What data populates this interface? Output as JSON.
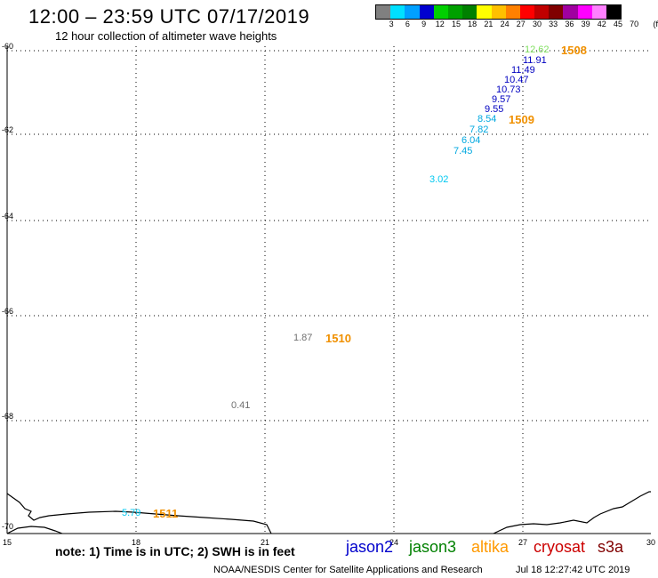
{
  "title": "12:00 – 23:59 UTC 07/17/2019",
  "subtitle": "12 hour collection of altimeter wave heights",
  "legend": {
    "colors": [
      "#808080",
      "#00e0ff",
      "#00a0ff",
      "#0000d0",
      "#00d000",
      "#00a000",
      "#008000",
      "#ffff00",
      "#ffc000",
      "#ff8000",
      "#ff0000",
      "#c00000",
      "#800000",
      "#a000a0",
      "#ff00ff",
      "#ff80ff",
      "#000000"
    ],
    "labels": [
      "3",
      "6",
      "9",
      "12",
      "15",
      "18",
      "21",
      "24",
      "27",
      "30",
      "33",
      "36",
      "39",
      "42",
      "45",
      "70",
      "(ft)"
    ]
  },
  "axes": {
    "x_ticks": [
      "15",
      "18",
      "21",
      "24",
      "27",
      "30"
    ],
    "y_ticks": [
      "-60",
      "-62",
      "-64",
      "-66",
      "-68",
      "-70"
    ]
  },
  "wave_heights": [
    {
      "value": "12.62",
      "color": "#80e060"
    },
    {
      "value": "11.91",
      "color": "#0000c0"
    },
    {
      "value": "11.49",
      "color": "#0000c0"
    },
    {
      "value": "10.47",
      "color": "#0000c0"
    },
    {
      "value": "10.73",
      "color": "#0000c0"
    },
    {
      "value": "9.57",
      "color": "#0000c0"
    },
    {
      "value": "9.55",
      "color": "#0000c0"
    },
    {
      "value": "8.54",
      "color": "#00a8e0"
    },
    {
      "value": "7.82",
      "color": "#00a8e0"
    },
    {
      "value": "6.04",
      "color": "#00a8e0"
    },
    {
      "value": "7.45",
      "color": "#00a8e0"
    },
    {
      "value": "3.02",
      "color": "#00c8f0"
    },
    {
      "value": "1.87",
      "color": "#707070"
    },
    {
      "value": "0.41",
      "color": "#707070"
    },
    {
      "value": "5.79",
      "color": "#00c8f0"
    }
  ],
  "time_labels": [
    "1508",
    "1509",
    "1510",
    "1511"
  ],
  "time_label_color": "#f09000",
  "note": "note: 1) Time is in UTC; 2) SWH is in feet",
  "satellites": [
    {
      "name": "jason2",
      "color": "#0000cc"
    },
    {
      "name": "jason3",
      "color": "#008000"
    },
    {
      "name": "altika",
      "color": "#ff9900"
    },
    {
      "name": "cryosat",
      "color": "#cc0000"
    },
    {
      "name": "s3a",
      "color": "#800000"
    }
  ],
  "footer": "NOAA/NESDIS Center for Satellite Applications and Research",
  "footer_time": "Jul 18 12:27:42 UTC 2019"
}
